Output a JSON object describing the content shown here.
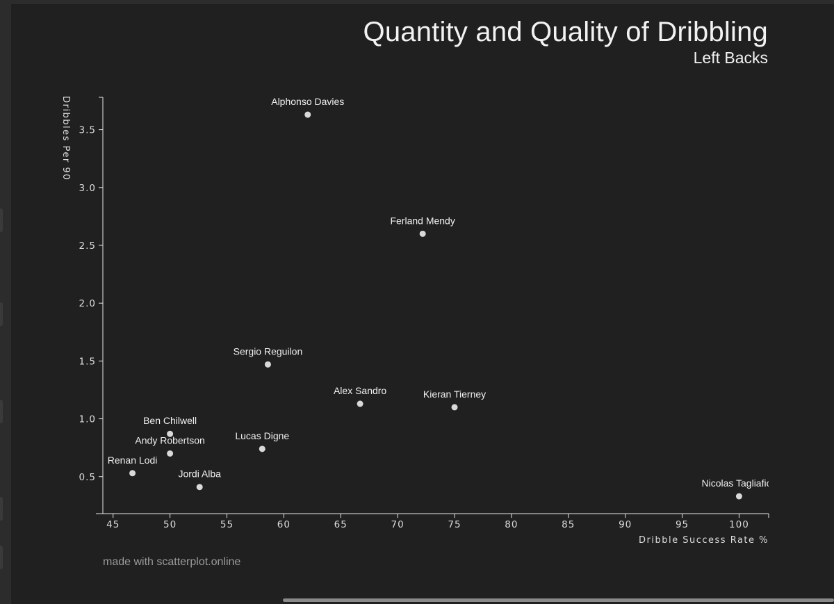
{
  "chart_data": {
    "type": "scatter",
    "title": "Quantity and Quality of Dribbling",
    "subtitle": "Left Backs",
    "xlabel": "Dribble Success Rate %",
    "ylabel": "Dribbles Per 90",
    "xlim": [
      44.1,
      102.6
    ],
    "ylim": [
      0.18,
      3.78
    ],
    "xticks": [
      45,
      50,
      55,
      60,
      65,
      70,
      75,
      80,
      85,
      90,
      95,
      100
    ],
    "yticks": [
      0.5,
      1.0,
      1.5,
      2.0,
      2.5,
      3.0,
      3.5
    ],
    "xtick_labels": [
      "45",
      "50",
      "55",
      "60",
      "65",
      "70",
      "75",
      "80",
      "85",
      "90",
      "95",
      "100"
    ],
    "ytick_labels": [
      "0.5",
      "1.0",
      "1.5",
      "2.0",
      "2.5",
      "3.0",
      "3.5"
    ],
    "points": [
      {
        "label": "Alphonso Davies",
        "x": 62.1,
        "y": 3.63
      },
      {
        "label": "Ferland Mendy",
        "x": 72.2,
        "y": 2.6
      },
      {
        "label": "Sergio Reguilon",
        "x": 58.6,
        "y": 1.47
      },
      {
        "label": "Alex Sandro",
        "x": 66.7,
        "y": 1.13
      },
      {
        "label": "Kieran Tierney",
        "x": 75.0,
        "y": 1.1
      },
      {
        "label": "Ben Chilwell",
        "x": 50.0,
        "y": 0.87
      },
      {
        "label": "Andy Robertson",
        "x": 50.0,
        "y": 0.7
      },
      {
        "label": "Lucas Digne",
        "x": 58.1,
        "y": 0.74
      },
      {
        "label": "Renan Lodi",
        "x": 46.7,
        "y": 0.53
      },
      {
        "label": "Jordi Alba",
        "x": 52.6,
        "y": 0.41
      },
      {
        "label": "Nicolas Tagliafico",
        "x": 100.0,
        "y": 0.33
      }
    ],
    "point_color": "#d9d9d9",
    "axis_color": "#e6e6e6",
    "background": "#202020"
  },
  "credit": "made with scatterplot.online"
}
